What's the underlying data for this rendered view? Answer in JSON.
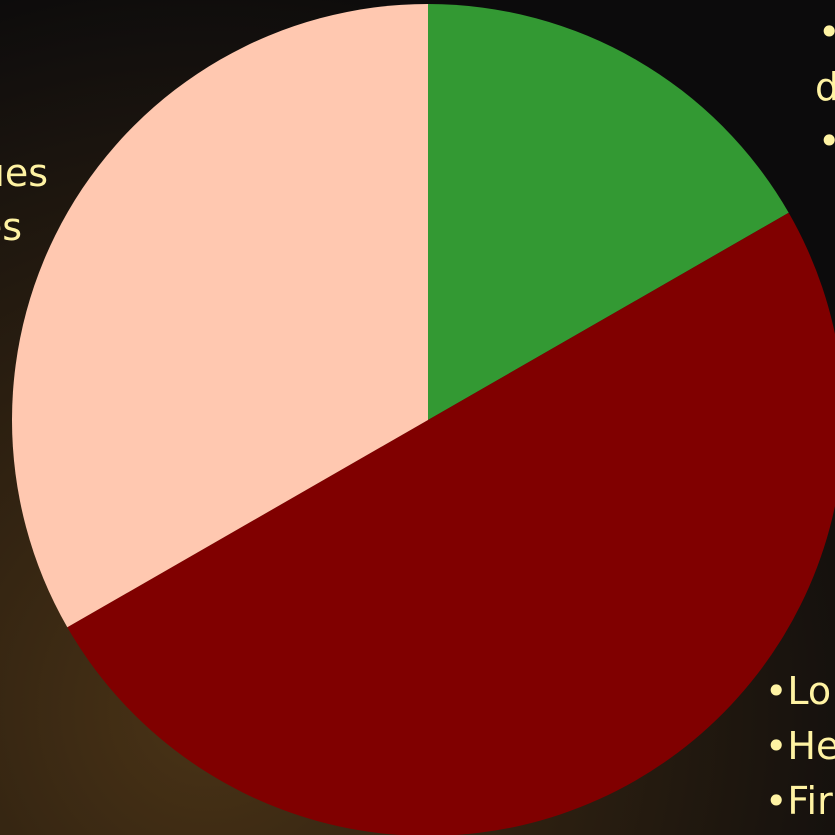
{
  "chart_data": {
    "type": "pie",
    "values": [
      16.7,
      50,
      33.3
    ],
    "colors": [
      "#339933",
      "#800000",
      "#ffc8b0"
    ],
    "annotations": [
      "•S",
      "d",
      "•A",
      "ues",
      "es",
      "•Lo",
      "•He",
      "•Fir"
    ]
  }
}
